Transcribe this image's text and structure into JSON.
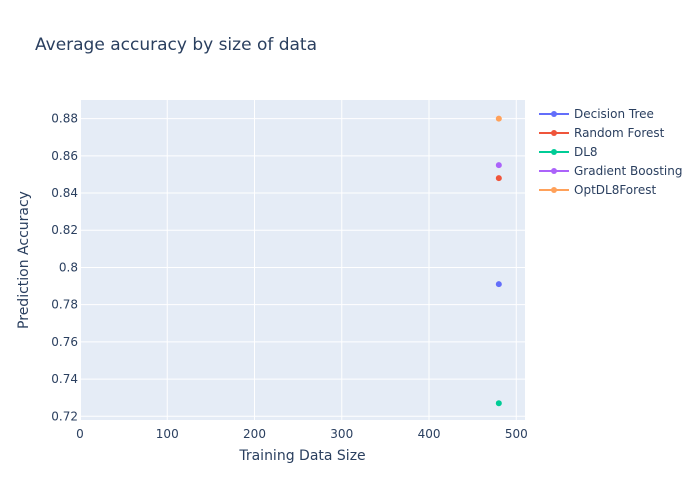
{
  "chart_data": {
    "type": "scatter",
    "title": "Average accuracy by size of data",
    "xlabel": "Training Data Size",
    "ylabel": "Prediction Accuracy",
    "xlim": [
      0,
      510
    ],
    "ylim": [
      0.718,
      0.89
    ],
    "x_ticks": [
      0,
      100,
      200,
      300,
      400,
      500
    ],
    "x_tick_labels": [
      "0",
      "100",
      "200",
      "300",
      "400",
      "500"
    ],
    "y_ticks": [
      0.72,
      0.74,
      0.76,
      0.78,
      0.8,
      0.82,
      0.84,
      0.86,
      0.88
    ],
    "y_tick_labels": [
      "0.72",
      "0.74",
      "0.76",
      "0.78",
      "0.8",
      "0.82",
      "0.84",
      "0.86",
      "0.88"
    ],
    "grid": true,
    "legend_position": "right",
    "series": [
      {
        "name": "Decision Tree",
        "color": "#636efa",
        "x": [
          480
        ],
        "y": [
          0.791
        ]
      },
      {
        "name": "Random Forest",
        "color": "#ef553b",
        "x": [
          480
        ],
        "y": [
          0.848
        ]
      },
      {
        "name": "DL8",
        "color": "#00cc96",
        "x": [
          480
        ],
        "y": [
          0.727
        ]
      },
      {
        "name": "Gradient Boosting",
        "color": "#ab63fa",
        "x": [
          480
        ],
        "y": [
          0.855
        ]
      },
      {
        "name": "OptDL8Forest",
        "color": "#ffa15a",
        "x": [
          480
        ],
        "y": [
          0.88
        ]
      }
    ]
  }
}
